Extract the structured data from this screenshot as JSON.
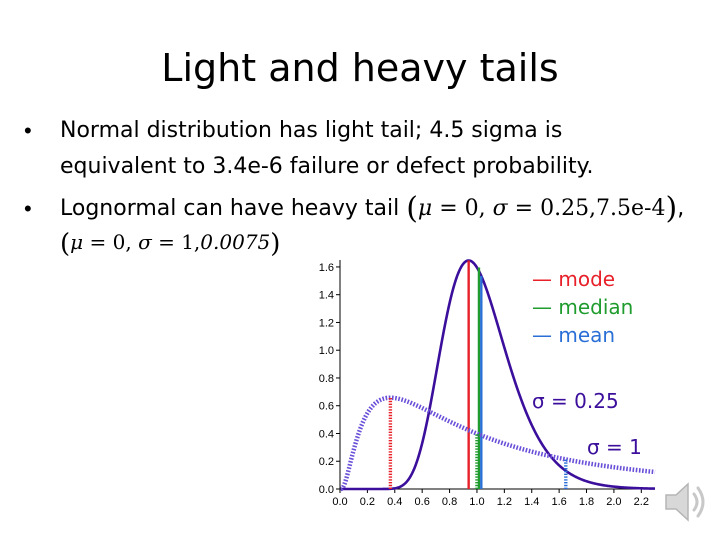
{
  "slide": {
    "title": "Light and heavy tails",
    "bullets": [
      {
        "lines": [
          "Normal distribution has light tail; 4.5 sigma is",
          "equivalent to 3.4e-6 failure or defect probability."
        ]
      },
      {
        "line1_text": "Lognormal can have heavy  tail",
        "param1": {
          "mu_sym": "μ",
          "eq": " = 0, ",
          "sigma_sym": "σ",
          "eq2": " = 0.25,7.5e-4",
          "trail": ","
        },
        "param2": {
          "mu_sym": "μ",
          "eq": " = 0, ",
          "sigma_sym": "σ",
          "eq2": " = 1,",
          "value_italic": "0.0075"
        }
      }
    ],
    "bullet_glyph": "•"
  },
  "chart_data": {
    "type": "line",
    "x_ticks": [
      "0.0",
      "0.2",
      "0.4",
      "0.6",
      "0.8",
      "1.0",
      "1.2",
      "1.4",
      "1.6",
      "1.8",
      "2.0",
      "2.2"
    ],
    "y_ticks": [
      "0.0",
      "0.2",
      "0.4",
      "0.6",
      "0.8",
      "1.0",
      "1.2",
      "1.4",
      "1.6"
    ],
    "xlim": [
      0,
      2.3
    ],
    "ylim": [
      0,
      1.65
    ],
    "legend": [
      {
        "name": "mode",
        "color": "#e8202a"
      },
      {
        "name": "median",
        "color": "#1f9c2d"
      },
      {
        "name": "mean",
        "color": "#2a6fd6"
      }
    ],
    "legend_glyph": "—",
    "series": [
      {
        "name": "σ = 0.25",
        "sigma": 0.25,
        "mu": 0,
        "color": "#3b0f9c",
        "style": "solid",
        "mode": 0.9394,
        "median": 1.0,
        "mean": 1.0317
      },
      {
        "name": "σ = 1",
        "sigma": 1,
        "mu": 0,
        "color": "#5a3fc6",
        "style": "dotted",
        "mode": 0.3679,
        "median": 1.0,
        "mean": 1.6487
      }
    ],
    "curve_labels": [
      "σ = 0.25",
      "σ = 1"
    ]
  },
  "icons": {
    "speaker": "speaker-icon"
  }
}
